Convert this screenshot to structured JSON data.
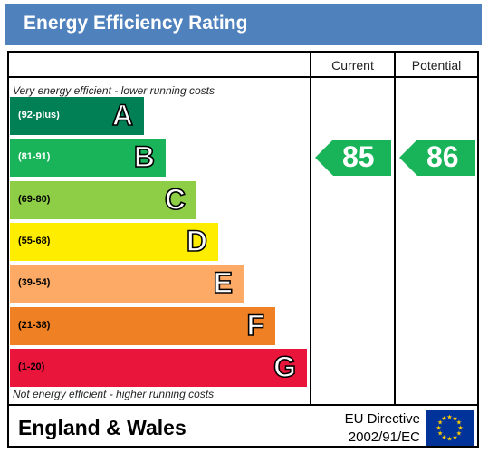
{
  "header": {
    "title": "Energy Efficiency Rating"
  },
  "columns": {
    "current": "Current",
    "potential": "Potential"
  },
  "notes": {
    "top": "Very energy efficient - lower running costs",
    "bottom": "Not energy efficient - higher running costs"
  },
  "chart_data": {
    "type": "bar",
    "title": "Energy Efficiency Rating",
    "categories": [
      "A",
      "B",
      "C",
      "D",
      "E",
      "F",
      "G"
    ],
    "bands": [
      {
        "letter": "A",
        "range": "(92-plus)",
        "color": "#008054",
        "text_color": "#ffffff"
      },
      {
        "letter": "B",
        "range": "(81-91)",
        "color": "#19b459",
        "text_color": "#ffffff"
      },
      {
        "letter": "C",
        "range": "(69-80)",
        "color": "#8dce46",
        "text_color": "#000000"
      },
      {
        "letter": "D",
        "range": "(55-68)",
        "color": "#ffed00",
        "text_color": "#000000"
      },
      {
        "letter": "E",
        "range": "(39-54)",
        "color": "#fcaa65",
        "text_color": "#000000"
      },
      {
        "letter": "F",
        "range": "(21-38)",
        "color": "#ef8023",
        "text_color": "#000000"
      },
      {
        "letter": "G",
        "range": "(1-20)",
        "color": "#e9153b",
        "text_color": "#000000"
      }
    ],
    "series": [
      {
        "name": "Current",
        "value": 85,
        "band": "B"
      },
      {
        "name": "Potential",
        "value": 86,
        "band": "B"
      }
    ]
  },
  "footer": {
    "country": "England & Wales",
    "directive_line1": "EU Directive",
    "directive_line2": "2002/91/EC"
  },
  "colors": {
    "header_bg": "#4f81bd",
    "eu_flag_bg": "#003399",
    "eu_star": "#ffcc00"
  }
}
